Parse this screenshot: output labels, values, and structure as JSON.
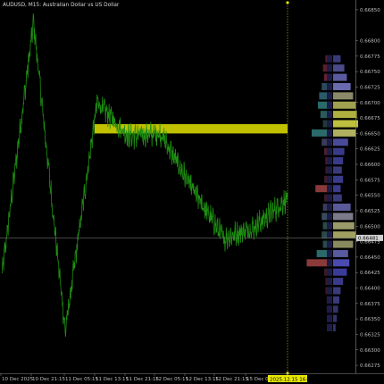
{
  "window": {
    "title": "AUDUSD, M15:  Australian Dollar vs US Dollar"
  },
  "colors": {
    "background": "#000000",
    "price_line": "#1f8f12",
    "highlight_zone": "#d6d600",
    "bid_line": "#777777",
    "cursor_line": "#c8c800",
    "time_badge_bg": "#e6e600",
    "price_badge_bg": "#cccccc"
  },
  "price_axis": {
    "labels": [
      "0.66850",
      "0.66800",
      "0.66775",
      "0.66750",
      "0.66725",
      "0.66700",
      "0.66675",
      "0.66650",
      "0.66625",
      "0.66600",
      "0.66575",
      "0.66550",
      "0.66525",
      "0.66500",
      "0.66475",
      "0.66450",
      "0.66425",
      "0.66400",
      "0.66375",
      "0.66350",
      "0.66325",
      "0.66300",
      "0.66275"
    ],
    "current_price_label": "0.66481"
  },
  "time_axis": {
    "labels": [
      "10 Dec 2025",
      "10 Dec 21:15",
      "11 Dec 05:15",
      "11 Dec 13:15",
      "11 Dec 21:15",
      "12 Dec 05:15",
      "12 Dec 13:15",
      "12 Dec 21:15",
      "15 Dec 05:15"
    ],
    "cursor_label": "2025.12.15 16:00"
  },
  "chart_data": {
    "type": "line",
    "title": "AUDUSD, M15:  Australian Dollar vs US Dollar",
    "xlabel": "",
    "ylabel": "",
    "ylim": [
      0.66265,
      0.6686
    ],
    "x": [
      "10 Dec 2025",
      "10 Dec 21:15",
      "11 Dec 05:15",
      "11 Dec 13:15",
      "11 Dec 21:15",
      "12 Dec 05:15",
      "12 Dec 13:15",
      "12 Dec 21:15",
      "15 Dec 05:15",
      "2025.12.15 16:00"
    ],
    "series": [
      {
        "values": [
          0.6642,
          0.6683,
          0.6633,
          0.667,
          0.66645,
          0.6665,
          0.6656,
          0.6648,
          0.665,
          0.66545
        ]
      }
    ],
    "highlight_zone": [
      0.6665,
      0.66665
    ],
    "current_price": 0.66481,
    "grid": false,
    "legend": "none"
  },
  "volume_profile": {
    "levels": [
      {
        "price": 0.6677,
        "left": 0.2,
        "right": 0.3,
        "lc": "#5a1f2a",
        "rc": "#3a3a7a"
      },
      {
        "price": 0.66755,
        "left": 0.3,
        "right": 0.45,
        "lc": "#5a1f2a",
        "rc": "#4a4a8a"
      },
      {
        "price": 0.6674,
        "left": 0.25,
        "right": 0.55,
        "lc": "#6a2030",
        "rc": "#5a5aa0"
      },
      {
        "price": 0.66725,
        "left": 0.35,
        "right": 0.7,
        "lc": "#2a4a5a",
        "rc": "#6a6ab0"
      },
      {
        "price": 0.6671,
        "left": 0.45,
        "right": 0.8,
        "lc": "#2a5a6a",
        "rc": "#8a8a6a"
      },
      {
        "price": 0.66695,
        "left": 0.5,
        "right": 0.9,
        "lc": "#2a6a6a",
        "rc": "#a0a050"
      },
      {
        "price": 0.6668,
        "left": 0.4,
        "right": 0.95,
        "lc": "#2a5a5a",
        "rc": "#b0b040"
      },
      {
        "price": 0.66665,
        "left": 0.3,
        "right": 1.0,
        "lc": "#203a3a",
        "rc": "#c0c040"
      },
      {
        "price": 0.6665,
        "left": 0.75,
        "right": 0.9,
        "lc": "#2a6a6a",
        "rc": "#b0b060"
      },
      {
        "price": 0.66635,
        "left": 0.35,
        "right": 0.6,
        "lc": "#3a3a5a",
        "rc": "#4a4a9a"
      },
      {
        "price": 0.6662,
        "left": 0.25,
        "right": 0.45,
        "lc": "#4a2030",
        "rc": "#3a3a8a"
      },
      {
        "price": 0.66605,
        "left": 0.2,
        "right": 0.4,
        "lc": "#4a2030",
        "rc": "#3a3a8a"
      },
      {
        "price": 0.6659,
        "left": 0.2,
        "right": 0.35,
        "lc": "#3a1a25",
        "rc": "#3a3a7a"
      },
      {
        "price": 0.66575,
        "left": 0.25,
        "right": 0.4,
        "lc": "#3a1a25",
        "rc": "#3a3a8a"
      },
      {
        "price": 0.6656,
        "left": 0.6,
        "right": 0.3,
        "lc": "#8a3a3a",
        "rc": "#3a3a8a"
      },
      {
        "price": 0.66545,
        "left": 0.25,
        "right": 0.35,
        "lc": "#3a1a25",
        "rc": "#3a3a7a"
      },
      {
        "price": 0.6653,
        "left": 0.3,
        "right": 0.7,
        "lc": "#3a3a5a",
        "rc": "#5a5a9a"
      },
      {
        "price": 0.66515,
        "left": 0.35,
        "right": 0.8,
        "lc": "#3a4a5a",
        "rc": "#7a7a8a"
      },
      {
        "price": 0.665,
        "left": 0.3,
        "right": 0.85,
        "lc": "#2a4a4a",
        "rc": "#9a9a6a"
      },
      {
        "price": 0.66485,
        "left": 0.35,
        "right": 0.9,
        "lc": "#2a4a4a",
        "rc": "#a0a060"
      },
      {
        "price": 0.6647,
        "left": 0.3,
        "right": 0.8,
        "lc": "#2a4a4a",
        "rc": "#8a8a60"
      },
      {
        "price": 0.66455,
        "left": 0.55,
        "right": 0.6,
        "lc": "#2a6a6a",
        "rc": "#5a5aa0"
      },
      {
        "price": 0.6644,
        "left": 0.95,
        "right": 0.65,
        "lc": "#8a3a3a",
        "rc": "#4a4ab0"
      },
      {
        "price": 0.66425,
        "left": 0.25,
        "right": 0.55,
        "lc": "#3a1a25",
        "rc": "#3a3a9a"
      },
      {
        "price": 0.6641,
        "left": 0.2,
        "right": 0.4,
        "lc": "#3a1a25",
        "rc": "#3a3a8a"
      },
      {
        "price": 0.66395,
        "left": 0.2,
        "right": 0.3,
        "lc": "#3a1a25",
        "rc": "#3a3a7a"
      },
      {
        "price": 0.6638,
        "left": 0.15,
        "right": 0.25,
        "lc": "#3a1a25",
        "rc": "#3a3a7a"
      },
      {
        "price": 0.66365,
        "left": 0.15,
        "right": 0.2,
        "lc": "#3a1a25",
        "rc": "#33336a"
      },
      {
        "price": 0.6635,
        "left": 0.1,
        "right": 0.15,
        "lc": "#3a1a25",
        "rc": "#33336a"
      },
      {
        "price": 0.66335,
        "left": 0.05,
        "right": 0.1,
        "lc": "#3a1a25",
        "rc": "#33336a"
      }
    ]
  }
}
